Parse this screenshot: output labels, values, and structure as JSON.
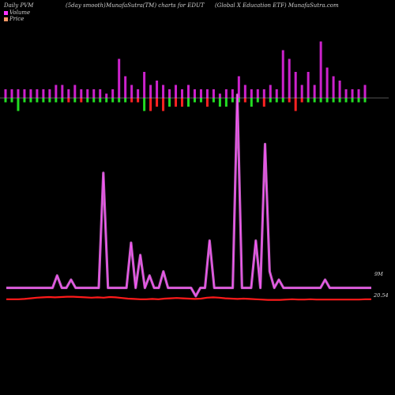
{
  "header": {
    "left": "Daily PVM",
    "smooth": "(5day smooth)",
    "title": "MunafaSutra(TM) charts for EDUT",
    "source": "(Global X  Education  ETF) MunafaSutra.com"
  },
  "legend": [
    {
      "label": "Volume",
      "color": "#ff33ff"
    },
    {
      "label": "Price",
      "color": "#ff9966"
    }
  ],
  "colors": {
    "background": "#000000",
    "volume_line": "#cc66cc",
    "volume_line_highlight": "#ff55ff",
    "price_line": "#ff1a1a",
    "bar_up": "#cc22cc",
    "bar_down_red": "#ff2222",
    "bar_down_green": "#22dd22",
    "zero_line": "#aaaaaa"
  },
  "chart_data": [
    {
      "type": "bar",
      "name": "PVM volume-direction bars",
      "y_zero": 0,
      "ylim": [
        -1,
        7
      ],
      "upper": [
        1,
        1,
        1,
        1,
        1,
        1,
        1,
        1,
        1.5,
        1.5,
        1,
        1.5,
        1,
        1,
        1,
        1,
        0.5,
        1,
        4.5,
        2.5,
        1.5,
        1,
        3,
        1.5,
        2,
        1.5,
        1,
        1.5,
        1,
        1.5,
        1,
        1,
        1,
        1,
        0.5,
        1,
        1,
        2.5,
        1.5,
        1,
        1,
        1,
        1.5,
        1,
        5.5,
        4.5,
        3,
        1.5,
        3,
        1.5,
        6.5,
        3.5,
        2.5,
        2,
        1,
        1,
        1,
        1.5
      ],
      "lower": [
        -0.5,
        -0.5,
        -1.5,
        -0.5,
        -0.5,
        -0.5,
        -0.5,
        -0.5,
        -0.5,
        -0.5,
        -0.5,
        -0.5,
        -0.5,
        -0.5,
        -0.5,
        -0.5,
        -0.5,
        -0.5,
        -0.5,
        -0.5,
        -0.5,
        -0.5,
        -1.5,
        -1.5,
        -1,
        -1.5,
        -1,
        -1,
        -1,
        -1,
        -0.5,
        -0.5,
        -1,
        -0.5,
        -1,
        -1,
        -0.5,
        -0.5,
        -0.5,
        -1,
        -0.5,
        -1,
        -0.5,
        -0.5,
        -0.5,
        -0.5,
        -1.5,
        -0.5,
        -0.5,
        -0.5,
        -0.5,
        -0.5,
        -0.5,
        -0.5,
        -0.5,
        -0.5,
        -0.5,
        -0.5
      ],
      "lower_color": [
        "g",
        "g",
        "g",
        "g",
        "g",
        "g",
        "g",
        "g",
        "g",
        "g",
        "r",
        "g",
        "r",
        "g",
        "g",
        "g",
        "g",
        "g",
        "g",
        "g",
        "r",
        "r",
        "g",
        "r",
        "r",
        "r",
        "g",
        "r",
        "r",
        "g",
        "g",
        "g",
        "r",
        "g",
        "g",
        "g",
        "g",
        "g",
        "r",
        "g",
        "g",
        "r",
        "g",
        "g",
        "g",
        "r",
        "r",
        "r",
        "g",
        "g",
        "g",
        "g",
        "g",
        "g",
        "g",
        "g",
        "g",
        "g"
      ]
    },
    {
      "type": "line",
      "name": "Volume",
      "ylim": [
        0,
        100
      ],
      "values": [
        6,
        6,
        6,
        6,
        6,
        6,
        6,
        6,
        6,
        6,
        6,
        12,
        6,
        6,
        10,
        6,
        6,
        6,
        6,
        6,
        6,
        62,
        6,
        6,
        6,
        6,
        6,
        28,
        6,
        22,
        6,
        12,
        6,
        6,
        14,
        6,
        6,
        6,
        6,
        6,
        6,
        2,
        6,
        6,
        29,
        6,
        6,
        6,
        6,
        6,
        100,
        6,
        6,
        6,
        29,
        6,
        76,
        14,
        6,
        10,
        6,
        6,
        6,
        6,
        6,
        6,
        6,
        6,
        6,
        10,
        6,
        6,
        6,
        6,
        6,
        6,
        6,
        6,
        6,
        6
      ],
      "label": "9M"
    },
    {
      "type": "line",
      "name": "Price",
      "ylim": [
        0,
        100
      ],
      "values": [
        3,
        3,
        3,
        4,
        6,
        8,
        9,
        10,
        9,
        10,
        11,
        11,
        10,
        9,
        8,
        9,
        8,
        10,
        9,
        7,
        5,
        4,
        3,
        3,
        4,
        3,
        5,
        6,
        7,
        6,
        5,
        4,
        5,
        8,
        9,
        8,
        6,
        5,
        4,
        5,
        4,
        3,
        2,
        1,
        1,
        1,
        2,
        3,
        2,
        2,
        3,
        2,
        2,
        2,
        2,
        2,
        2,
        2,
        2,
        3,
        3
      ],
      "label": "20.54"
    }
  ]
}
